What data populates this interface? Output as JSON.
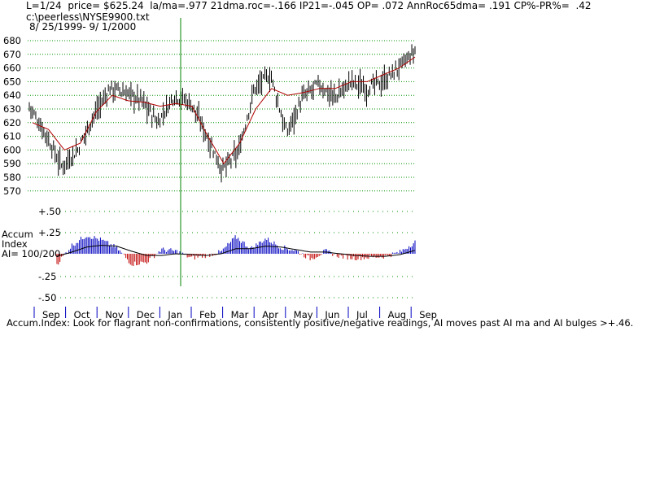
{
  "header": {
    "line1": "L=1/24  price= $625.24  la/ma=.977 21dma.roc=-.166 IP21=-.045 OP= .072 AnnRoc65dma= .191 CP%-PR%=  .42",
    "file": "c:\\peerless\\NYSE9900.txt",
    "range": "8/ 25/1999- 9/ 1/2000"
  },
  "footer": "Accum.Index: Look for flagrant non-confirmations, consistently positive/negative readings, AI moves past AI ma and AI bulges >+.46.",
  "colors": {
    "price_bar": "#000000",
    "ma_line": "#b00000",
    "grid": "#009000",
    "marker": "#008000",
    "ai_positive": "#0000c0",
    "ai_negative": "#c00000",
    "month_tick": "#0000c0"
  },
  "chart_data": [
    {
      "type": "bar",
      "name": "price",
      "ylim": [
        570,
        680
      ],
      "y_ticks": [
        "680",
        "670",
        "660",
        "650",
        "640",
        "630",
        "620",
        "610",
        "600",
        "590",
        "580",
        "570"
      ],
      "months": [
        "Sep",
        "Oct",
        "Nov",
        "Dec",
        "Jan",
        "Feb",
        "Mar",
        "Apr",
        "May",
        "Jun",
        "Jul",
        "Aug",
        "Sep"
      ],
      "close_by_half_month": [
        632,
        612,
        588,
        600,
        625,
        645,
        642,
        636,
        620,
        640,
        635,
        612,
        585,
        598,
        645,
        655,
        612,
        638,
        648,
        638,
        650,
        645,
        650,
        660,
        672
      ],
      "ma_by_half_month": [
        620,
        615,
        600,
        605,
        628,
        640,
        636,
        635,
        632,
        634,
        632,
        610,
        590,
        605,
        630,
        645,
        640,
        642,
        645,
        645,
        650,
        650,
        655,
        660,
        668
      ]
    },
    {
      "type": "bar",
      "name": "Accum Index",
      "labels": [
        "Accum",
        "Index",
        "AI= 100/200"
      ],
      "ylim": [
        -0.5,
        0.5
      ],
      "y_ticks": [
        "+.50",
        "+.25",
        "-.25",
        "-.50"
      ],
      "ai_by_half_month": [
        -0.12,
        0.1,
        0.22,
        0.16,
        0.07,
        -0.12,
        -0.1,
        0.05,
        0.03,
        -0.05,
        -0.02,
        0.02,
        0.2,
        0.06,
        0.18,
        0.08,
        0.04,
        -0.06,
        0.03,
        -0.03,
        -0.05,
        -0.04,
        -0.03,
        0.02,
        0.14
      ],
      "ai_ma_by_half_month": [
        -0.03,
        0.02,
        0.08,
        0.1,
        0.09,
        0.03,
        -0.02,
        -0.02,
        0.0,
        -0.01,
        -0.02,
        0.0,
        0.06,
        0.06,
        0.09,
        0.08,
        0.05,
        0.02,
        0.02,
        0.0,
        -0.02,
        -0.03,
        -0.03,
        -0.01,
        0.04
      ]
    }
  ]
}
